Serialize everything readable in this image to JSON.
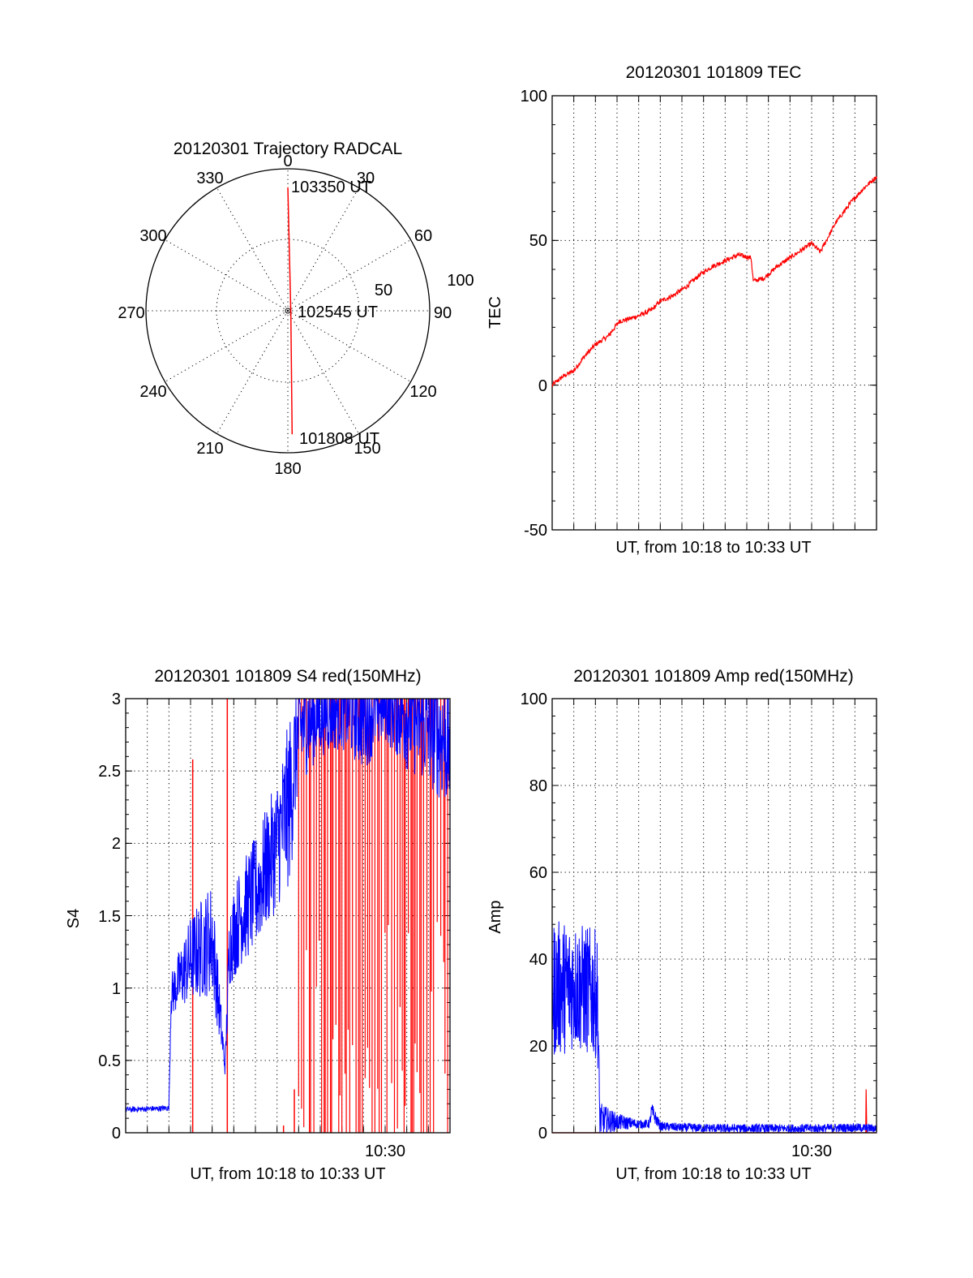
{
  "colors": {
    "red_series": "#ff0000",
    "blue_series": "#0000ff",
    "axes": "#000000",
    "background": "#ffffff"
  },
  "chart_data": [
    {
      "id": "trajectory",
      "type": "polar",
      "title": "20120301 Trajectory RADCAL",
      "angle_labels": [
        "0",
        "30",
        "60",
        "90",
        "120",
        "150",
        "180",
        "210",
        "240",
        "270",
        "300",
        "330"
      ],
      "radial_labels": [
        "50",
        "100"
      ],
      "radial_range": [
        0,
        100
      ],
      "track": {
        "start": {
          "azimuth": 178,
          "zenith": 87
        },
        "mid": {
          "azimuth": 135,
          "zenith": 3
        },
        "end": {
          "azimuth": 0,
          "zenith": 87
        }
      },
      "annotations": [
        "103350 UT",
        "102545 UT",
        "101808 UT"
      ]
    },
    {
      "id": "tec",
      "type": "line",
      "title": "20120301 101809 TEC",
      "xlabel": "UT, from 10:18 to 10:33 UT",
      "ylabel": "TEC",
      "xlim": [
        0,
        15
      ],
      "ylim": [
        -50,
        100
      ],
      "yticks": [
        "-50",
        "0",
        "50",
        "100"
      ],
      "series": [
        {
          "name": "TEC",
          "color": "red",
          "x": [
            0,
            0.5,
            1,
            1.5,
            2,
            2.6,
            3.1,
            3.6,
            4,
            4.6,
            5,
            5.6,
            6.2,
            6.8,
            7.4,
            8,
            8.6,
            9.2,
            9.3,
            9.8,
            10.4,
            11,
            11.6,
            12,
            12.4,
            13.1,
            13.8,
            14.4,
            15
          ],
          "values": [
            0,
            3,
            5,
            10,
            14,
            17,
            22,
            23,
            24,
            26,
            29,
            31,
            34,
            38,
            41,
            43,
            45,
            44,
            36,
            37,
            41,
            44,
            47,
            49,
            46,
            56,
            63,
            68,
            72
          ]
        }
      ]
    },
    {
      "id": "s4",
      "type": "line",
      "title": "20120301 101809 S4 red(150MHz)",
      "xlabel": "UT, from 10:18 to 10:33 UT",
      "ylabel": "S4",
      "xlim": [
        0,
        15
      ],
      "ylim": [
        0,
        3
      ],
      "yticks": [
        "0",
        "0.5",
        "1",
        "1.5",
        "2",
        "2.5",
        "3"
      ],
      "xtick_labels": [
        {
          "x": 12,
          "label": "10:30"
        }
      ],
      "series": [
        {
          "name": "S4 blue",
          "color": "blue",
          "x": [
            0,
            2,
            2.1,
            3,
            4,
            4.6,
            4.8,
            5.3,
            6,
            7,
            7.6,
            8,
            9,
            10,
            11,
            12,
            13,
            14,
            15
          ],
          "values": [
            0.16,
            0.17,
            0.95,
            1.2,
            1.35,
            0.45,
            1.3,
            1.5,
            1.65,
            2.0,
            2.3,
            2.8,
            2.9,
            2.95,
            2.9,
            3.0,
            2.9,
            2.8,
            2.7
          ],
          "noise": [
            0.02,
            0.02,
            0.15,
            0.3,
            0.4,
            0.06,
            0.3,
            0.35,
            0.4,
            0.45,
            0.6,
            0.4,
            0.3,
            0.3,
            0.4,
            0.3,
            0.4,
            0.4,
            0.5
          ]
        },
        {
          "name": "S4 red",
          "color": "red",
          "spikes": [
            {
              "x": 3.1,
              "y": 2.58
            },
            {
              "x": 4.7,
              "y": 3.0
            },
            {
              "x": 7.3,
              "y": 0.05
            },
            {
              "x": 7.8,
              "y": 0.3
            }
          ],
          "dense_range": [
            8.0,
            15.0
          ],
          "dense_ymin": 0.0,
          "dense_ymax": 3.0
        }
      ]
    },
    {
      "id": "amp",
      "type": "line",
      "title": "20120301 101809 Amp red(150MHz)",
      "xlabel": "UT, from 10:18 to 10:33 UT",
      "ylabel": "Amp",
      "xlim": [
        0,
        15
      ],
      "ylim": [
        0,
        100
      ],
      "yticks": [
        "0",
        "20",
        "40",
        "60",
        "80",
        "100"
      ],
      "xtick_labels": [
        {
          "x": 12,
          "label": "10:30"
        }
      ],
      "series": [
        {
          "name": "Amp blue",
          "color": "blue",
          "x": [
            0,
            1,
            2,
            2.1,
            2.2,
            3,
            4,
            4.5,
            4.6,
            5,
            6,
            8,
            10,
            12,
            14,
            15
          ],
          "values": [
            33,
            34,
            32,
            31,
            3,
            2.5,
            2,
            2,
            5,
            1.5,
            1.2,
            1,
            1,
            1,
            1.2,
            1
          ],
          "noise": [
            16,
            15,
            15,
            14,
            4,
            2,
            1,
            1,
            2,
            1,
            1,
            1,
            1,
            1,
            1,
            1
          ]
        },
        {
          "name": "Amp red",
          "color": "red",
          "x": [
            0,
            2.2,
            14.5,
            14.52,
            14.55,
            15
          ],
          "values": [
            0,
            0,
            0,
            10,
            0,
            0
          ]
        }
      ]
    }
  ]
}
